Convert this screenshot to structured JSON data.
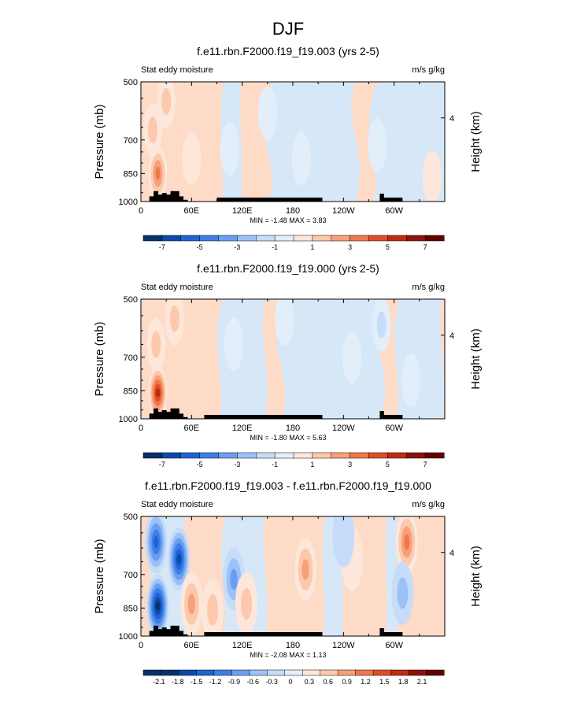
{
  "page_title": "DJF",
  "colors": {
    "pos_light": "#fddbc7",
    "neg_light": "#d6e8f8",
    "land": "#000000"
  },
  "chart_data": [
    {
      "type": "heatmap",
      "title": "f.e11.rbn.F2000.f19_f19.003 (yrs 2-5)",
      "left_label": "Stat eddy moisture",
      "right_label": "m/s g/kg",
      "ylabel": "Pressure (mb)",
      "ylabel_right": "Height (km)",
      "yticks": [
        "500",
        "700",
        "850",
        "1000"
      ],
      "yticks_right": [
        "4"
      ],
      "xticks": [
        "0",
        "60E",
        "120E",
        "180",
        "120W",
        "60W"
      ],
      "stats": "MIN = -1.48  MAX =  3.83",
      "colorbar": {
        "colors": [
          "#08306b",
          "#0b4aa8",
          "#1f63d6",
          "#3d7fe6",
          "#6a9ff0",
          "#9cc1f6",
          "#c6dcf9",
          "#e3eefb",
          "#fde7da",
          "#fcc9ad",
          "#f8a07a",
          "#f0764d",
          "#e04e28",
          "#c02b12",
          "#8e1208",
          "#650000"
        ],
        "labels": [
          "-7",
          "-5",
          "-3",
          "-1",
          "1",
          "3",
          "5",
          "7"
        ]
      },
      "features": [
        {
          "x": 20,
          "p": 850,
          "v": 3.8
        },
        {
          "x": 14,
          "p": 660,
          "v": 1.8
        },
        {
          "x": 30,
          "p": 560,
          "v": 1.2
        },
        {
          "x": 60,
          "p": 780,
          "v": 0.8
        },
        {
          "x": 105,
          "p": 740,
          "v": -0.8
        },
        {
          "x": 150,
          "p": 600,
          "v": -0.5
        },
        {
          "x": 190,
          "p": 780,
          "v": -0.4
        },
        {
          "x": 280,
          "p": 720,
          "v": -0.4
        },
        {
          "x": 345,
          "p": 870,
          "v": 0.7
        }
      ]
    },
    {
      "type": "heatmap",
      "title": "f.e11.rbn.F2000.f19_f19.000 (yrs 2-5)",
      "left_label": "Stat eddy moisture",
      "right_label": "m/s g/kg",
      "ylabel": "Pressure (mb)",
      "ylabel_right": "Height (km)",
      "yticks": [
        "500",
        "700",
        "850",
        "1000"
      ],
      "yticks_right": [
        "4"
      ],
      "xticks": [
        "0",
        "60E",
        "120E",
        "180",
        "120W",
        "60W"
      ],
      "stats": "MIN = -1.80  MAX =  5.63",
      "colorbar": {
        "colors": [
          "#08306b",
          "#0b4aa8",
          "#1f63d6",
          "#3d7fe6",
          "#6a9ff0",
          "#9cc1f6",
          "#c6dcf9",
          "#e3eefb",
          "#fde7da",
          "#fcc9ad",
          "#f8a07a",
          "#f0764d",
          "#e04e28",
          "#c02b12",
          "#8e1208",
          "#650000"
        ],
        "labels": [
          "-7",
          "-5",
          "-3",
          "-1",
          "1",
          "3",
          "5",
          "7"
        ]
      },
      "features": [
        {
          "x": 20,
          "p": 860,
          "v": 5.6
        },
        {
          "x": 18,
          "p": 650,
          "v": 2.0
        },
        {
          "x": 40,
          "p": 560,
          "v": 1.2
        },
        {
          "x": 110,
          "p": 650,
          "v": -0.6
        },
        {
          "x": 170,
          "p": 560,
          "v": -0.5
        },
        {
          "x": 250,
          "p": 700,
          "v": -0.5
        },
        {
          "x": 285,
          "p": 580,
          "v": -1.2
        },
        {
          "x": 320,
          "p": 800,
          "v": -0.4
        }
      ]
    },
    {
      "type": "heatmap",
      "title": "f.e11.rbn.F2000.f19_f19.003 - f.e11.rbn.F2000.f19_f19.000",
      "left_label": "Stat eddy moisture",
      "right_label": "m/s g/kg",
      "ylabel": "Pressure (mb)",
      "ylabel_right": "Height (km)",
      "yticks": [
        "500",
        "700",
        "850",
        "1000"
      ],
      "yticks_right": [
        "4"
      ],
      "xticks": [
        "0",
        "60E",
        "120E",
        "180",
        "120W",
        "60W"
      ],
      "stats": "MIN = -2.08  MAX =  1.13",
      "colorbar": {
        "colors": [
          "#08306b",
          "#08306b",
          "#0b4aa8",
          "#1f63d6",
          "#3d7fe6",
          "#6a9ff0",
          "#9cc1f6",
          "#c6dcf9",
          "#e3eefb",
          "#fde7da",
          "#fcc9ad",
          "#f8a07a",
          "#f0764d",
          "#e04e28",
          "#c02b12",
          "#8e1208",
          "#650000"
        ],
        "labels": [
          "-2.1",
          "-1.8",
          "-1.5",
          "-1.2",
          "-0.9",
          "-0.6",
          "-0.3",
          "0",
          "0.3",
          "0.6",
          "0.9",
          "1.2",
          "1.5",
          "1.8",
          "2.1"
        ]
      },
      "features": [
        {
          "x": 20,
          "p": 840,
          "v": -2.0
        },
        {
          "x": 45,
          "p": 640,
          "v": -1.6
        },
        {
          "x": 18,
          "p": 580,
          "v": -1.3
        },
        {
          "x": 60,
          "p": 830,
          "v": 0.8
        },
        {
          "x": 85,
          "p": 860,
          "v": 0.6
        },
        {
          "x": 110,
          "p": 720,
          "v": -0.9
        },
        {
          "x": 125,
          "p": 830,
          "v": 0.6
        },
        {
          "x": 195,
          "p": 680,
          "v": 0.8
        },
        {
          "x": 250,
          "p": 640,
          "v": 0.3
        },
        {
          "x": 315,
          "p": 580,
          "v": 1.1
        },
        {
          "x": 310,
          "p": 780,
          "v": -0.6
        },
        {
          "x": 240,
          "p": 560,
          "v": -0.3
        }
      ]
    }
  ]
}
